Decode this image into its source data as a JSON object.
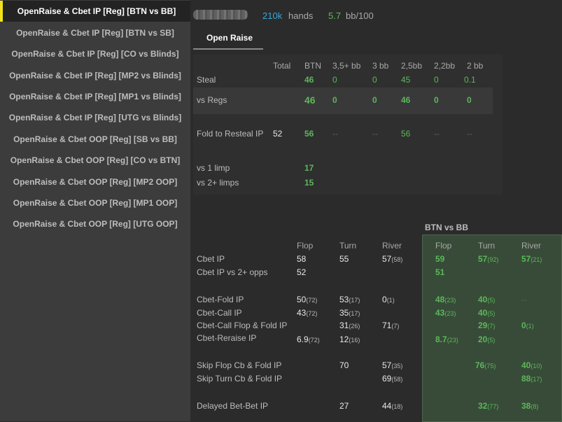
{
  "sidebar": {
    "items": [
      {
        "label": "OpenRaise & Cbet IP [Reg] [BTN vs BB]",
        "active": true
      },
      {
        "label": "OpenRaise & Cbet IP [Reg] [BTN vs SB]"
      },
      {
        "label": "OpenRaise & Cbet IP [Reg] [CO vs Blinds]"
      },
      {
        "label": "OpenRaise & Cbet IP [Reg] [MP2 vs Blinds]"
      },
      {
        "label": "OpenRaise & Cbet IP [Reg] [MP1 vs Blinds]"
      },
      {
        "label": "OpenRaise & Cbet IP [Reg] [UTG vs Blinds]"
      },
      {
        "label": "OpenRaise & Cbet OOP [Reg] [SB vs BB]"
      },
      {
        "label": "OpenRaise & Cbet OOP [Reg] [CO vs BTN]"
      },
      {
        "label": "OpenRaise & Cbet OOP [Reg] [MP2 OOP]"
      },
      {
        "label": "OpenRaise & Cbet OOP [Reg] [MP1 OOP]"
      },
      {
        "label": "OpenRaise & Cbet OOP [Reg] [UTG OOP]"
      }
    ]
  },
  "header": {
    "hands_count": "210k",
    "hands_label": "hands",
    "winrate": "5.7",
    "winrate_unit": "bb/100"
  },
  "tab": {
    "label": "Open Raise"
  },
  "open_raise": {
    "columns": [
      "Total",
      "BTN",
      "3,5+ bb",
      "3 bb",
      "2,5bb",
      "2,2bb",
      "2 bb"
    ],
    "steal": {
      "label": "Steal",
      "total": "",
      "btn": "46",
      "b35": "0",
      "b3": "0",
      "b25": "45",
      "b22": "0",
      "b2": "0.1"
    },
    "vs_regs": {
      "label": "vs Regs",
      "total": "",
      "btn": "46",
      "b35": "0",
      "b3": "0",
      "b25": "46",
      "b22": "0",
      "b2": "0"
    },
    "fold_resteal": {
      "label": "Fold to Resteal IP",
      "total": "52",
      "btn": "56",
      "b35": "--",
      "b3": "--",
      "b25": "56",
      "b22": "--",
      "b2": "--"
    },
    "vs_1_limp": {
      "label": "vs 1 limp",
      "btn": "17"
    },
    "vs_2_limps": {
      "label": "vs 2+ limps",
      "btn": "15"
    }
  },
  "cbet": {
    "panel_title": "BTN vs BB",
    "columns": [
      "Flop",
      "Turn",
      "River"
    ],
    "rows": {
      "cbet_ip": {
        "label": "Cbet IP",
        "flop": "58",
        "turn": "55",
        "river": "57",
        "river_n": "(58)",
        "bb_flop": "59",
        "bb_turn": "57",
        "bb_turn_n": "(92)",
        "bb_river": "57",
        "bb_river_n": "(21)"
      },
      "cbet_ip_2opps": {
        "label": "Cbet IP vs 2+ opps",
        "flop": "52",
        "bb_flop": "51"
      },
      "cbet_fold": {
        "label": "Cbet-Fold IP",
        "flop": "50",
        "flop_n": "(72)",
        "turn": "53",
        "turn_n": "(17)",
        "river": "0",
        "river_n": "(1)",
        "bb_flop": "48",
        "bb_flop_n": "(23)",
        "bb_turn": "40",
        "bb_turn_n": "(5)",
        "bb_river": "--"
      },
      "cbet_call": {
        "label": "Cbet-Call IP",
        "flop": "43",
        "flop_n": "(72)",
        "turn": "35",
        "turn_n": "(17)",
        "bb_flop": "43",
        "bb_flop_n": "(23)",
        "bb_turn": "40",
        "bb_turn_n": "(5)"
      },
      "cbet_call_fold": {
        "label": "Cbet-Call Flop & Fold IP",
        "turn": "31",
        "turn_n": "(26)",
        "river": "71",
        "river_n": "(7)",
        "bb_turn": "29",
        "bb_turn_n": "(7)",
        "bb_river": "0",
        "bb_river_n": "(1)"
      },
      "cbet_reraise": {
        "label": "Cbet-Reraise IP",
        "flop": "6.9",
        "flop_n": "(72)",
        "turn": "12",
        "turn_n": "(16)",
        "bb_flop": "8.7",
        "bb_flop_n": "(23)",
        "bb_turn": "20",
        "bb_turn_n": "(5)"
      },
      "skip_flop": {
        "label": "Skip Flop Cb & Fold IP",
        "turn": "70",
        "river": "57",
        "river_n": "(35)",
        "bb_turn": "76",
        "bb_turn_n": "(75)",
        "bb_river": "40",
        "bb_river_n": "(10)"
      },
      "skip_turn": {
        "label": "Skip Turn Cb & Fold IP",
        "river": "69",
        "river_n": "(58)",
        "bb_river": "88",
        "bb_river_n": "(17)"
      },
      "delayed": {
        "label": "Delayed Bet-Bet IP",
        "turn": "27",
        "river": "44",
        "river_n": "(18)",
        "bb_turn": "32",
        "bb_turn_n": "(77)",
        "bb_river": "38",
        "bb_river_n": "(8)"
      }
    }
  },
  "colors": {
    "accent": "#f2e11b",
    "positive": "#5bb85b",
    "hands": "#35a8d8"
  }
}
